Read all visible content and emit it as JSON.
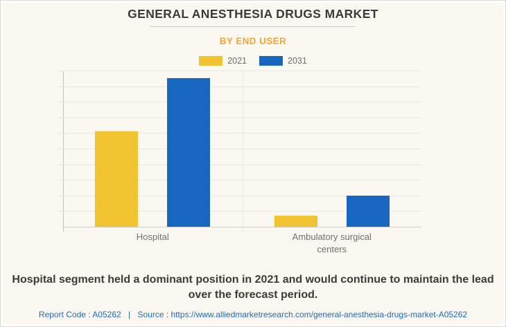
{
  "header": {
    "title": "GENERAL ANESTHESIA DRUGS MARKET",
    "subtitle": "BY END USER"
  },
  "chart_data": {
    "type": "bar",
    "title": "GENERAL ANESTHESIA DRUGS MARKET",
    "subtitle": "BY END USER",
    "categories": [
      "Hospital",
      "Ambulatory surgical centers"
    ],
    "series": [
      {
        "name": "2021",
        "color": "#f2c331",
        "values": [
          6.1,
          0.7
        ]
      },
      {
        "name": "2031",
        "color": "#1767c0",
        "values": [
          9.5,
          2.0
        ]
      }
    ],
    "xlabel": "",
    "ylabel": "",
    "ylim": [
      0,
      10
    ],
    "y_axis_labels_visible": false,
    "grid": true,
    "gridline_intervals": 10,
    "category_divider": true,
    "legend_position": "top"
  },
  "colors": {
    "background": "#faf8f1",
    "bar_2021": "#f2c331",
    "bar_2031": "#1767c0",
    "subtitle_orange": "#f9a529",
    "link_blue": "#2368b9"
  },
  "footer": {
    "summary": "Hospital segment held a dominant position in 2021 and would continue to maintain the lead over the forecast period.",
    "report_code_label": "Report Code : A05262",
    "separator": "|",
    "source_label": "Source :",
    "source_url": "https://www.alliedmarketresearch.com/general-anesthesia-drugs-market-A05262"
  }
}
